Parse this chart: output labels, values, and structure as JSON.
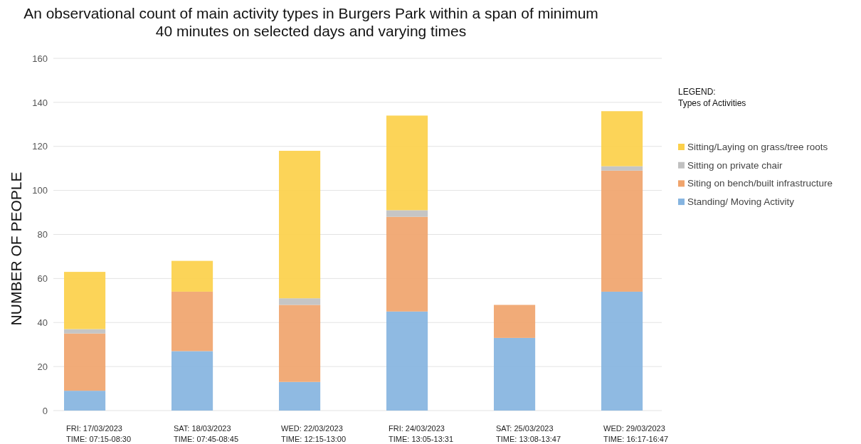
{
  "chart_data": {
    "type": "bar",
    "stacked": true,
    "title": "An observational count of main activity types in Burgers Park within a span of minimum\n40 minutes on selected days and varying times",
    "ylabel": "NUMBER OF PEOPLE",
    "legend_title": "LEGEND:\nTypes of Activities",
    "legend": "right",
    "grid": "y",
    "categories": [
      "FRI: 17/03/2023\nTIME: 07:15-08:30",
      "SAT: 18/03/2023\nTIME: 07:45-08:45",
      "WED: 22/03/2023\nTIME: 12:15-13:00",
      "FRI: 24/03/2023\nTIME: 13:05-13:31",
      "SAT: 25/03/2023\nTIME: 13:08-13:47",
      "WED: 29/03/2023\nTIME: 16:17-16:47"
    ],
    "ylim": [
      0,
      160
    ],
    "yticks": [
      0,
      20,
      40,
      60,
      80,
      100,
      120,
      140,
      160
    ],
    "series": [
      {
        "name": "Standing/ Moving Activity",
        "color": "#85b4e0",
        "values": [
          9,
          27,
          13,
          45,
          33,
          54
        ]
      },
      {
        "name": "Siting on bench/built infrastructure",
        "color": "#f0a46c",
        "values": [
          26,
          27,
          35,
          43,
          15,
          55
        ]
      },
      {
        "name": "Sitting on private chair",
        "color": "#c0c0c0",
        "values": [
          2,
          0,
          3,
          3,
          0,
          2
        ]
      },
      {
        "name": "Sitting/Laying on grass/tree roots",
        "color": "#fcd04a",
        "values": [
          26,
          14,
          67,
          43,
          0,
          25
        ]
      }
    ]
  }
}
